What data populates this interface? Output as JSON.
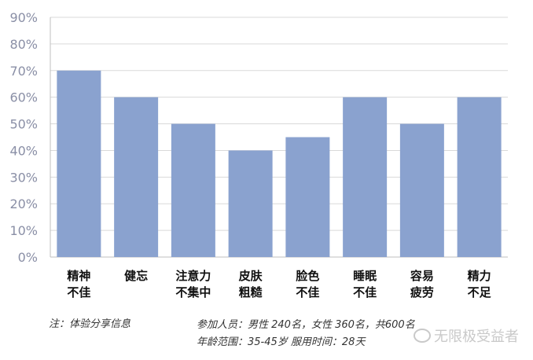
{
  "chart_data": {
    "type": "bar",
    "categories": [
      [
        "精神",
        "不佳"
      ],
      [
        "健忘"
      ],
      [
        "注意力",
        "不集中"
      ],
      [
        "皮肤",
        "粗糙"
      ],
      [
        "脸色",
        "不佳"
      ],
      [
        "睡眠",
        "不佳"
      ],
      [
        "容易",
        "疲劳"
      ],
      [
        "精力",
        "不足"
      ]
    ],
    "values": [
      70,
      60,
      50,
      40,
      45,
      60,
      50,
      60
    ],
    "yticks": [
      "0%",
      "10%",
      "20%",
      "30%",
      "40%",
      "50%",
      "60%",
      "70%",
      "80%",
      "90%"
    ],
    "ylim": [
      0,
      90
    ],
    "grid": true,
    "bar_color": "#8aa2cf",
    "title": "",
    "xlabel": "",
    "ylabel": ""
  },
  "notes": {
    "source": "注：体验分享信息",
    "participants": "参加人员：男性 240名，女性 360名，共600名",
    "age_duration": "年龄范围：35-45岁    服用时间：28天"
  },
  "watermark": {
    "icon": "wechat-icon",
    "text": "无限极受益者"
  }
}
